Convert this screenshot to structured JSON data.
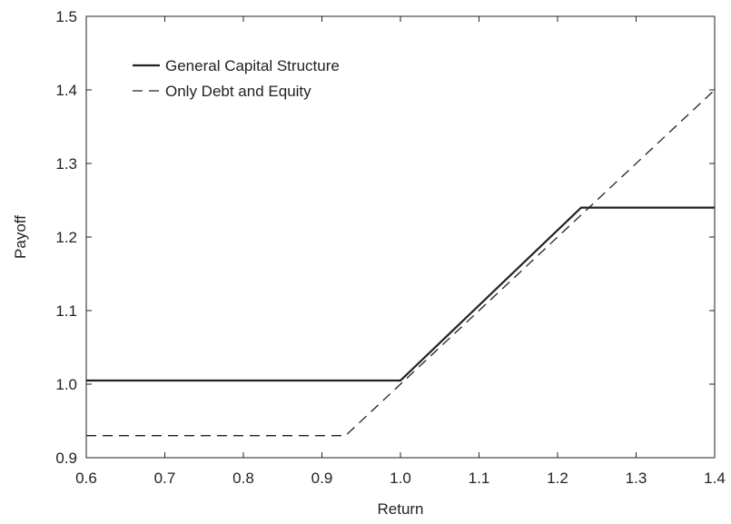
{
  "chart_data": {
    "type": "line",
    "title": "",
    "xlabel": "Return",
    "ylabel": "Payoff",
    "xlim": [
      0.6,
      1.4
    ],
    "ylim": [
      0.9,
      1.5
    ],
    "xticks": [
      "0.6",
      "0.7",
      "0.8",
      "0.9",
      "1.0",
      "1.1",
      "1.2",
      "1.3",
      "1.4"
    ],
    "yticks": [
      "0.9",
      "1.0",
      "1.1",
      "1.2",
      "1.3",
      "1.4",
      "1.5"
    ],
    "grid": false,
    "legend_position": "top-left",
    "series": [
      {
        "name": "General Capital Structure",
        "style": "solid",
        "color": "#222222",
        "points": [
          [
            0.6,
            1.005
          ],
          [
            1.0,
            1.005
          ],
          [
            1.23,
            1.24
          ],
          [
            1.4,
            1.24
          ]
        ]
      },
      {
        "name": "Only Debt and Equity",
        "style": "dashed",
        "color": "#222222",
        "points": [
          [
            0.6,
            0.93
          ],
          [
            0.93,
            0.93
          ],
          [
            1.4,
            1.4
          ]
        ]
      }
    ]
  }
}
